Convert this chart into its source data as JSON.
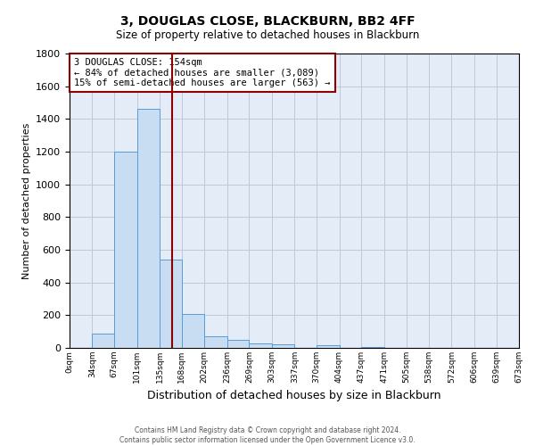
{
  "title": "3, DOUGLAS CLOSE, BLACKBURN, BB2 4FF",
  "subtitle": "Size of property relative to detached houses in Blackburn",
  "xlabel": "Distribution of detached houses by size in Blackburn",
  "ylabel": "Number of detached properties",
  "bin_edges": [
    0,
    34,
    67,
    101,
    135,
    168,
    202,
    236,
    269,
    303,
    337,
    370,
    404,
    437,
    471,
    505,
    538,
    572,
    606,
    639,
    673
  ],
  "bin_labels": [
    "0sqm",
    "34sqm",
    "67sqm",
    "101sqm",
    "135sqm",
    "168sqm",
    "202sqm",
    "236sqm",
    "269sqm",
    "303sqm",
    "337sqm",
    "370sqm",
    "404sqm",
    "437sqm",
    "471sqm",
    "505sqm",
    "538sqm",
    "572sqm",
    "606sqm",
    "639sqm",
    "673sqm"
  ],
  "counts": [
    0,
    90,
    1200,
    1460,
    540,
    205,
    70,
    50,
    30,
    20,
    0,
    15,
    0,
    5,
    0,
    0,
    0,
    0,
    0,
    0
  ],
  "bar_facecolor": "#c9ddf2",
  "bar_edgecolor": "#5b9bd5",
  "grid_color": "#c0c8d8",
  "bg_color": "#e4ecf7",
  "vline_x": 154,
  "vline_color": "#8b0000",
  "annotation_title": "3 DOUGLAS CLOSE: 154sqm",
  "annotation_line1": "← 84% of detached houses are smaller (3,089)",
  "annotation_line2": "15% of semi-detached houses are larger (563) →",
  "annotation_box_color": "#ffffff",
  "annotation_border_color": "#8b0000",
  "ylim": [
    0,
    1800
  ],
  "footer1": "Contains HM Land Registry data © Crown copyright and database right 2024.",
  "footer2": "Contains public sector information licensed under the Open Government Licence v3.0."
}
